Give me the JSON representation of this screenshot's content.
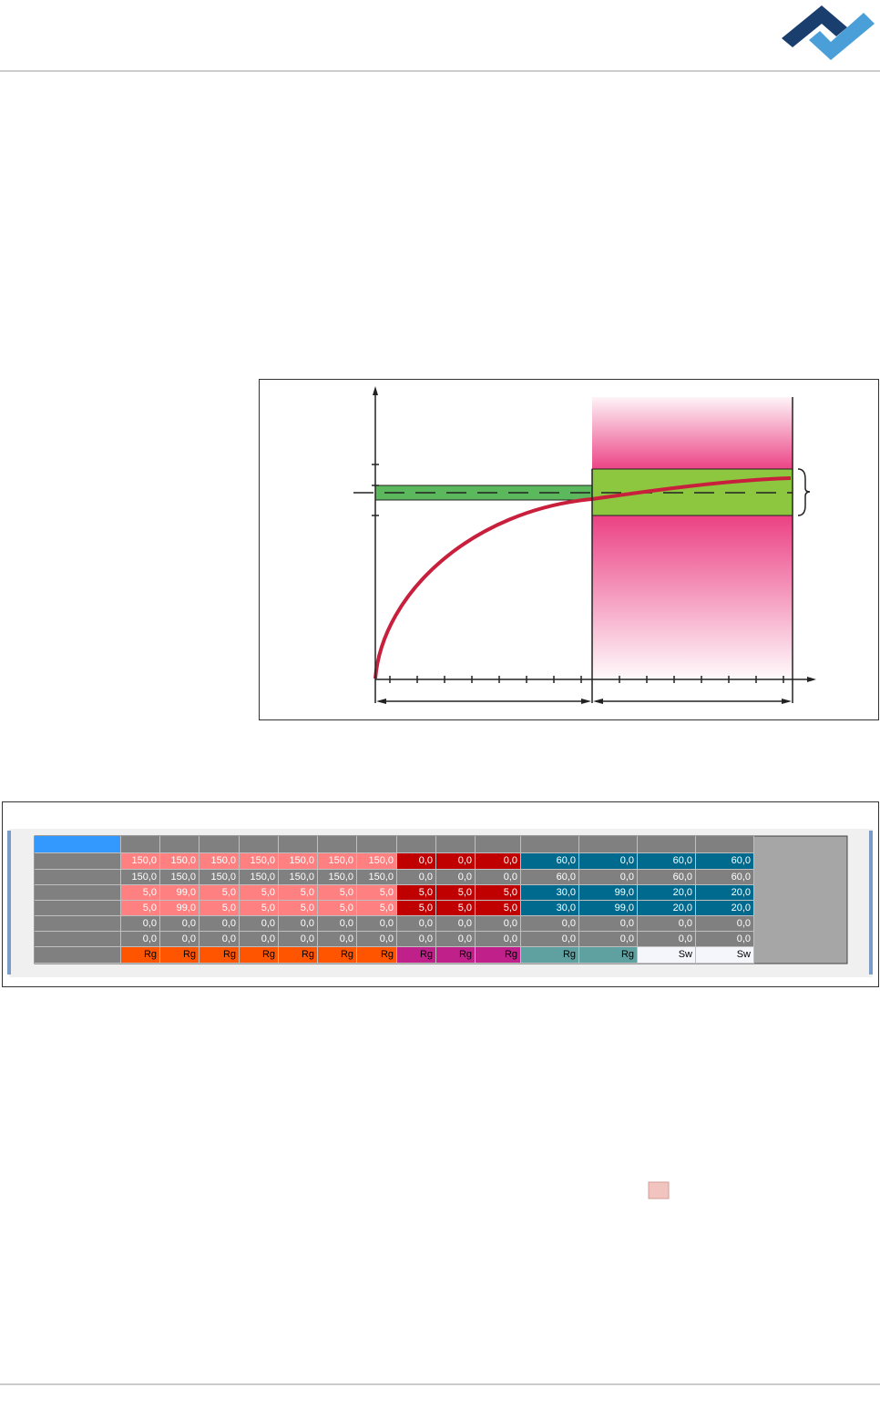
{
  "table": {
    "rows": [
      [
        "150,0",
        "150,0",
        "150,0",
        "150,0",
        "150,0",
        "150,0",
        "150,0",
        "0,0",
        "0,0",
        "0,0",
        "60,0",
        "0,0",
        "60,0",
        "60,0"
      ],
      [
        "150,0",
        "150,0",
        "150,0",
        "150,0",
        "150,0",
        "150,0",
        "150,0",
        "0,0",
        "0,0",
        "0,0",
        "60,0",
        "0,0",
        "60,0",
        "60,0"
      ],
      [
        "5,0",
        "99,0",
        "5,0",
        "5,0",
        "5,0",
        "5,0",
        "5,0",
        "5,0",
        "5,0",
        "5,0",
        "30,0",
        "99,0",
        "20,0",
        "20,0"
      ],
      [
        "5,0",
        "99,0",
        "5,0",
        "5,0",
        "5,0",
        "5,0",
        "5,0",
        "5,0",
        "5,0",
        "5,0",
        "30,0",
        "99,0",
        "20,0",
        "20,0"
      ],
      [
        "0,0",
        "0,0",
        "0,0",
        "0,0",
        "0,0",
        "0,0",
        "0,0",
        "0,0",
        "0,0",
        "0,0",
        "0,0",
        "0,0",
        "0,0",
        "0,0"
      ],
      [
        "0,0",
        "0,0",
        "0,0",
        "0,0",
        "0,0",
        "0,0",
        "0,0",
        "0,0",
        "0,0",
        "0,0",
        "0,0",
        "0,0",
        "0,0",
        "0,0"
      ],
      [
        "Rg",
        "Rg",
        "Rg",
        "Rg",
        "Rg",
        "Rg",
        "Rg",
        "Rg",
        "Rg",
        "Rg",
        "Rg",
        "Rg",
        "Sw",
        "Sw"
      ]
    ]
  }
}
